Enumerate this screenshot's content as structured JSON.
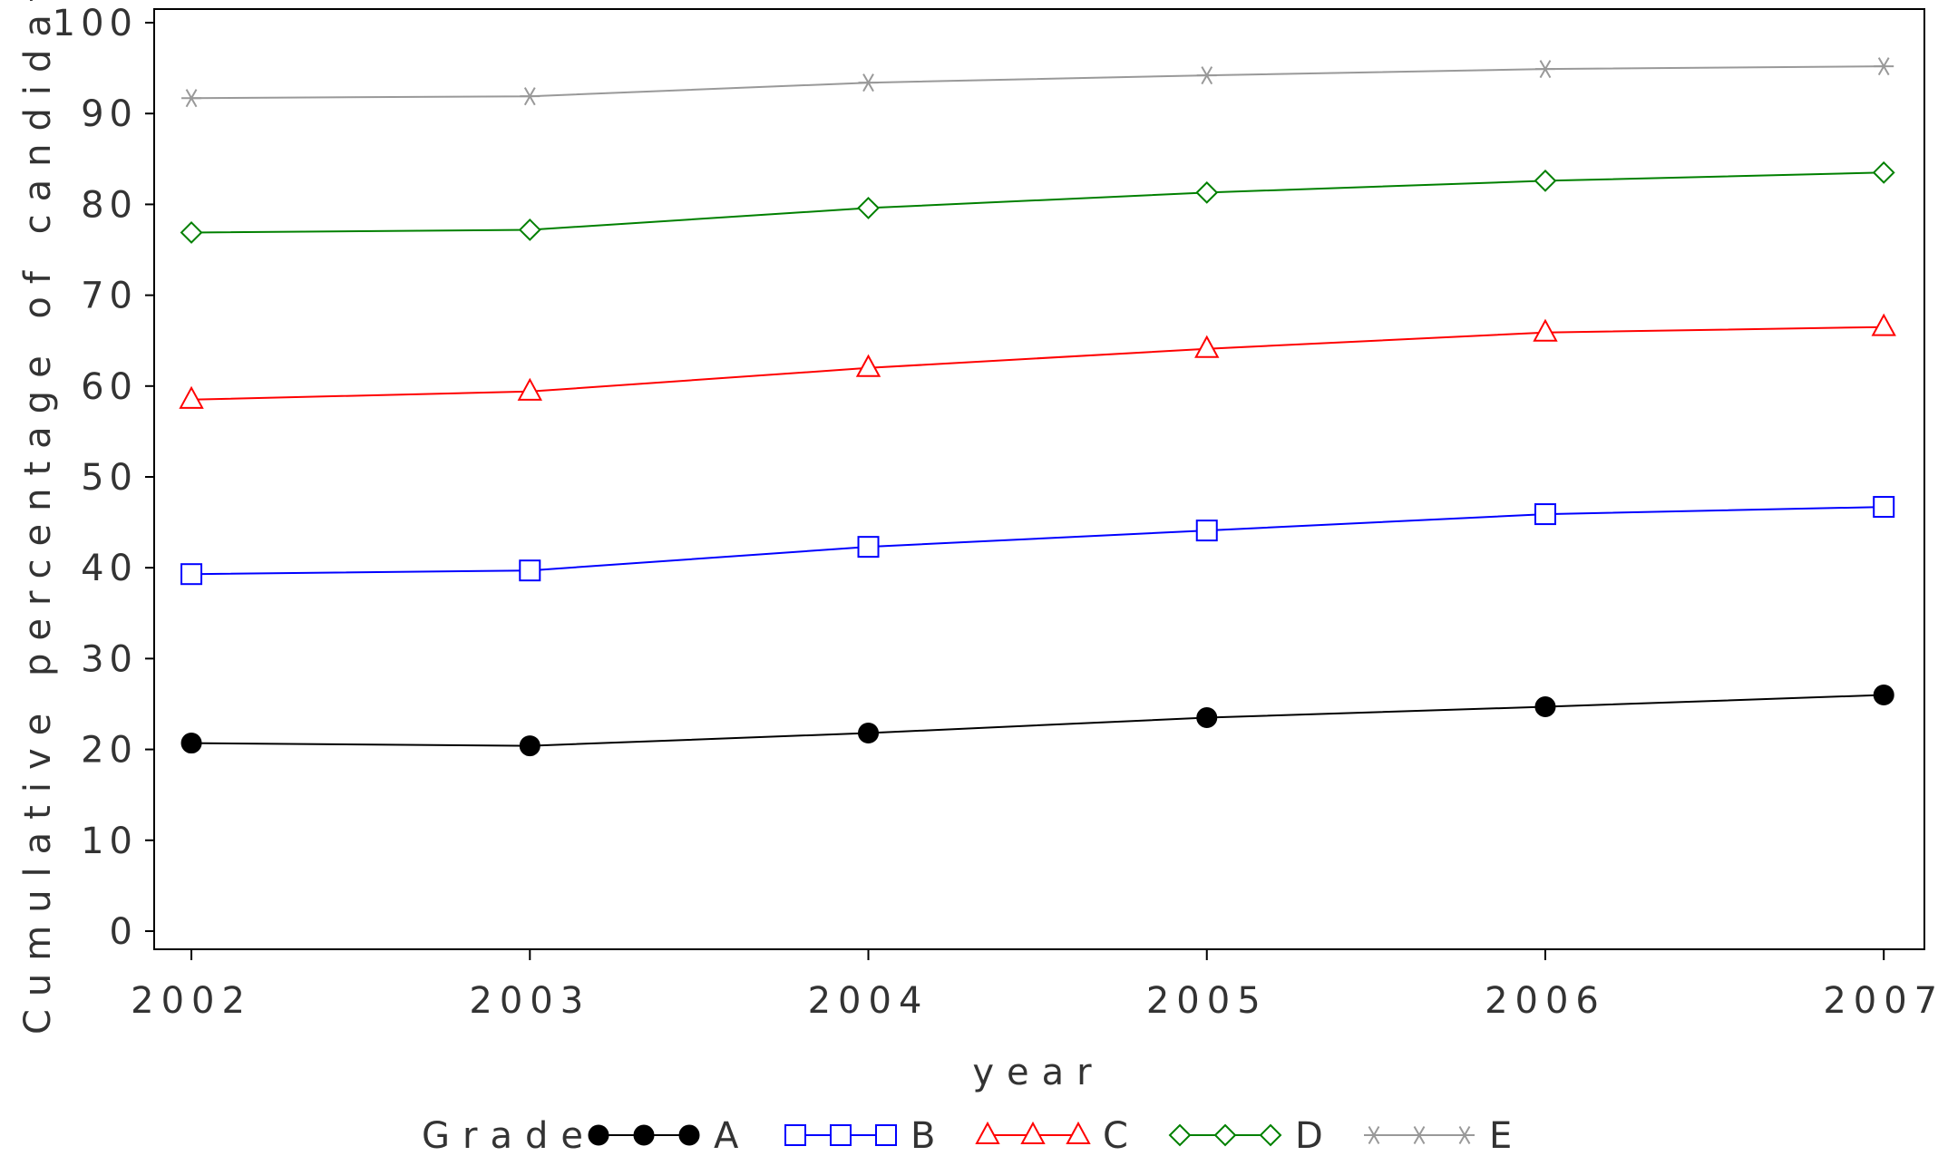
{
  "chart_data": {
    "type": "line",
    "title": "",
    "xlabel": "year",
    "ylabel": "Cumulative percentage of candidates",
    "x": [
      2002,
      2003,
      2004,
      2005,
      2006,
      2007
    ],
    "x_tick_labels": [
      "2002",
      "2003",
      "2004",
      "2005",
      "2006",
      "2007"
    ],
    "y_ticks": [
      0,
      10,
      20,
      30,
      40,
      50,
      60,
      70,
      80,
      90,
      100
    ],
    "y_tick_labels": [
      "0",
      "10",
      "20",
      "30",
      "40",
      "50",
      "60",
      "70",
      "80",
      "90",
      "100"
    ],
    "xlim": [
      2001.89,
      2007.12
    ],
    "ylim": [
      -2.0,
      101.5
    ],
    "grid": false,
    "legend_title": "Grade",
    "legend_placement": "bottom",
    "series": [
      {
        "name": "A",
        "marker": "filled-circle",
        "color": "#000000",
        "values": [
          20.7,
          20.4,
          21.8,
          23.5,
          24.7,
          26.0
        ]
      },
      {
        "name": "B",
        "marker": "square",
        "color": "#0000ff",
        "values": [
          39.3,
          39.7,
          42.3,
          44.1,
          45.9,
          46.7
        ]
      },
      {
        "name": "C",
        "marker": "triangle",
        "color": "#ff0000",
        "values": [
          58.5,
          59.4,
          62.0,
          64.1,
          65.9,
          66.5
        ]
      },
      {
        "name": "D",
        "marker": "diamond",
        "color": "#008000",
        "values": [
          76.9,
          77.2,
          79.6,
          81.3,
          82.6,
          83.5
        ]
      },
      {
        "name": "E",
        "marker": "star",
        "color": "#999999",
        "values": [
          91.7,
          91.9,
          93.4,
          94.2,
          94.9,
          95.2
        ]
      }
    ]
  }
}
